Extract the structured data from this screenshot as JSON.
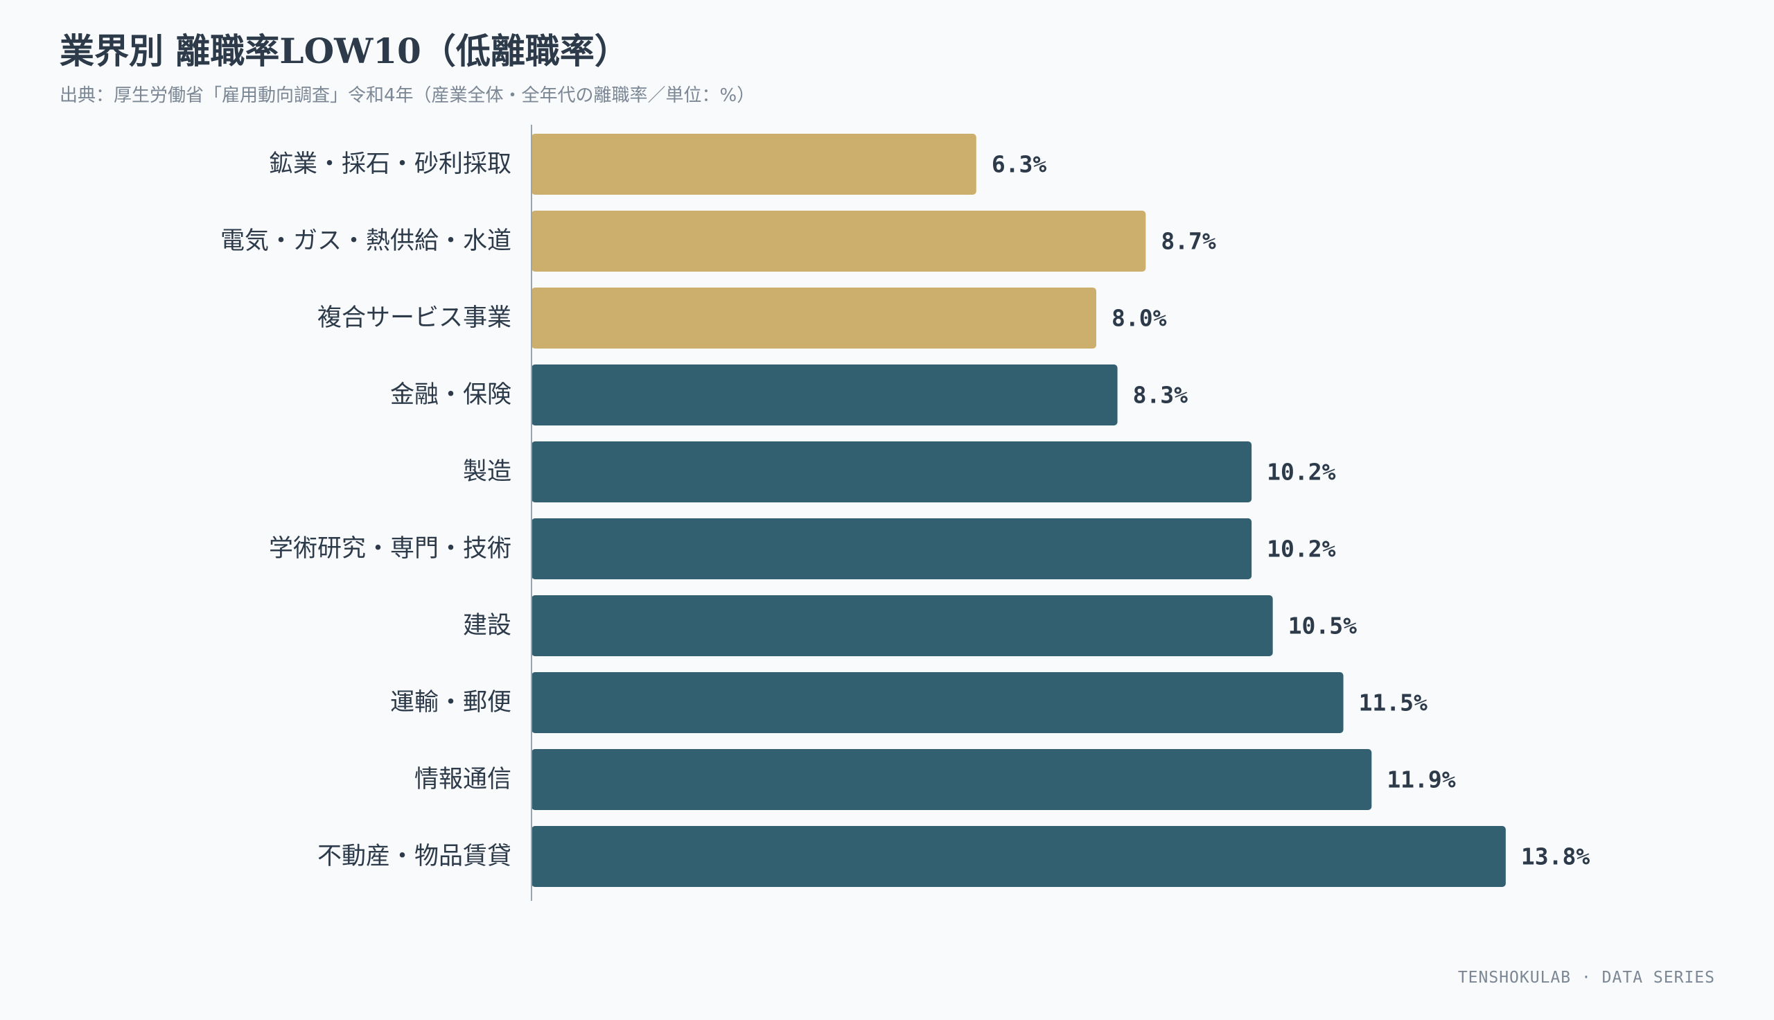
{
  "title": "業界別 離職率LOW10（低離職率）",
  "subtitle": "出典：厚生労働省「雇用動向調査」令和4年（産業全体・全年代の離職率／単位：%）",
  "footer": "TENSHOKULAB · DATA SERIES",
  "colors": {
    "highlight": "#cdaf6d",
    "base": "#326070",
    "axis": "#9aa4ae",
    "background": "#f8fafc"
  },
  "chart_data": {
    "type": "bar",
    "orientation": "horizontal",
    "categories": [
      "鉱業・採石・砂利採取",
      "電気・ガス・熱供給・水道",
      "複合サービス事業",
      "金融・保険",
      "製造",
      "学術研究・専門・技術",
      "建設",
      "運輸・郵便",
      "情報通信",
      "不動産・物品賃貸"
    ],
    "values": [
      6.3,
      8.7,
      8.0,
      8.3,
      10.2,
      10.2,
      10.5,
      11.5,
      11.9,
      13.8
    ],
    "value_labels": [
      "6.3%",
      "8.7%",
      "8.0%",
      "8.3%",
      "10.2%",
      "10.2%",
      "10.5%",
      "11.5%",
      "11.9%",
      "13.8%"
    ],
    "highlighted": [
      true,
      true,
      true,
      false,
      false,
      false,
      false,
      false,
      false,
      false
    ],
    "xlim": [
      0,
      16
    ],
    "unit": "%",
    "grid": false,
    "legend": "none"
  }
}
